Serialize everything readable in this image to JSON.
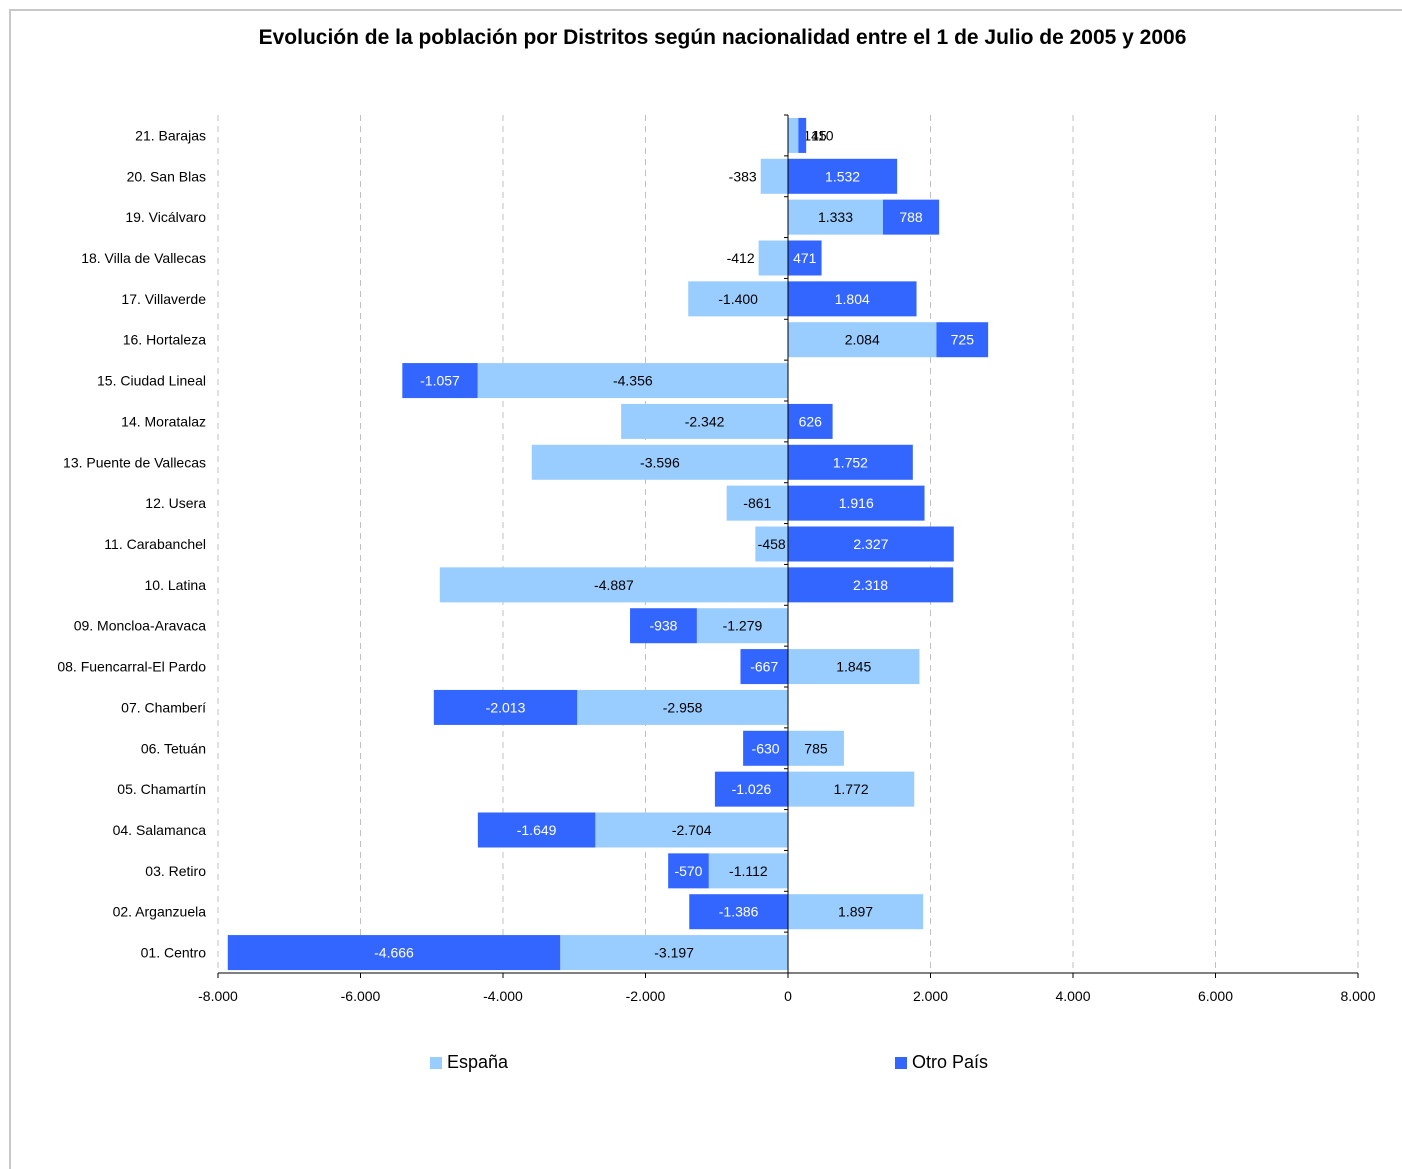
{
  "chart_data": {
    "type": "bar",
    "orientation": "horizontal",
    "stacked": true,
    "title": "Evolución de la población por Distritos según nacionalidad entre el 1 de Julio de 2005 y 2006",
    "xlabel": "",
    "ylabel": "",
    "xlim": [
      -8000,
      8000
    ],
    "xticks": [
      -8000,
      -6000,
      -4000,
      -2000,
      0,
      2000,
      4000,
      6000,
      8000
    ],
    "xtick_labels": [
      "-8.000",
      "-6.000",
      "-4.000",
      "-2.000",
      "0",
      "2.000",
      "4.000",
      "6.000",
      "8.000"
    ],
    "grid": "vertical-dashed",
    "legend_position": "bottom",
    "categories": [
      "21. Barajas",
      "20. San Blas",
      "19. Vicálvaro",
      "18. Villa de Vallecas",
      "17. Villaverde",
      "16. Hortaleza",
      "15. Ciudad Lineal",
      "14. Moratalaz",
      "13.  Puente de Vallecas",
      "12. Usera",
      "11. Carabanchel",
      "10. Latina",
      "09. Moncloa-Aravaca",
      "08. Fuencarral-El Pardo",
      "07. Chamberí",
      "06. Tetuán",
      "05. Chamartín",
      "04. Salamanca",
      "03. Retiro",
      "02. Arganzuela",
      "01. Centro"
    ],
    "series": [
      {
        "name": "España",
        "color": "#99ccff",
        "values": [
          145,
          -383,
          1333,
          -412,
          -1400,
          2084,
          -4356,
          -2342,
          -3596,
          -861,
          -458,
          -4887,
          -1279,
          1845,
          -2958,
          785,
          1772,
          -2704,
          -1112,
          1897,
          -3197
        ],
        "labels": [
          "145",
          "-383",
          "1.333",
          "-412",
          "-1.400",
          "2.084",
          "-4.356",
          "-2.342",
          "-3.596",
          "-861",
          "-458",
          "-4.887",
          "-1.279",
          "1.845",
          "-2.958",
          "785",
          "1.772",
          "-2.704",
          "-1.112",
          "1.897",
          "-3.197"
        ]
      },
      {
        "name": "Otro País",
        "color": "#3366ff",
        "values": [
          110,
          1532,
          788,
          471,
          1804,
          725,
          -1057,
          626,
          1752,
          1916,
          2327,
          2318,
          -938,
          -667,
          -2013,
          -630,
          -1026,
          -1649,
          -570,
          -1386,
          -4666
        ],
        "labels": [
          "110",
          "1.532",
          "788",
          "471",
          "1.804",
          "725",
          "-1.057",
          "626",
          "1.752",
          "1.916",
          "2.327",
          "2.318",
          "-938",
          "-667",
          "-2.013",
          "-630",
          "-1.026",
          "-1.649",
          "-570",
          "-1.386",
          "-4.666"
        ]
      }
    ]
  },
  "legend": {
    "spain": "España",
    "other": "Otro País",
    "spain_color": "#99ccff",
    "other_color": "#3366ff"
  }
}
